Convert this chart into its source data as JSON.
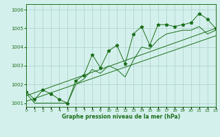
{
  "x": [
    0,
    1,
    2,
    3,
    4,
    5,
    6,
    7,
    8,
    9,
    10,
    11,
    12,
    13,
    14,
    15,
    16,
    17,
    18,
    19,
    20,
    21,
    22,
    23
  ],
  "y_main": [
    1001.6,
    1001.2,
    1001.7,
    1001.5,
    1001.2,
    1001.0,
    1002.2,
    1002.5,
    1003.6,
    1002.9,
    1003.8,
    1004.1,
    1003.1,
    1004.7,
    1005.1,
    1004.1,
    1005.2,
    1005.2,
    1005.1,
    1005.2,
    1005.3,
    1005.8,
    1005.5,
    1005.0
  ],
  "y_low": [
    1001.5,
    1001.0,
    1001.0,
    1001.0,
    1001.0,
    1001.0,
    1002.0,
    1002.3,
    1002.8,
    1002.6,
    1003.0,
    1002.8,
    1002.4,
    1003.3,
    1004.0,
    1003.9,
    1004.4,
    1004.7,
    1004.8,
    1004.9,
    1004.9,
    1005.1,
    1004.7,
    1004.9
  ],
  "trend1_x": [
    0,
    23
  ],
  "trend1_y": [
    1001.4,
    1005.0
  ],
  "trend2_x": [
    0,
    23
  ],
  "trend2_y": [
    1001.1,
    1004.6
  ],
  "xlim": [
    0,
    23
  ],
  "ylim": [
    1000.8,
    1006.3
  ],
  "yticks": [
    1001,
    1002,
    1003,
    1004,
    1005,
    1006
  ],
  "xticks": [
    0,
    1,
    2,
    3,
    4,
    5,
    6,
    7,
    8,
    9,
    10,
    11,
    12,
    13,
    14,
    15,
    16,
    17,
    18,
    19,
    20,
    21,
    22,
    23
  ],
  "xlabel": "Graphe pression niveau de la mer (hPa)",
  "line_color": "#1a6e1a",
  "bg_color": "#d4f0ec",
  "grid_color": "#aacfca",
  "marker": "*",
  "marker_size": 3.5,
  "tick_fontsize": 5,
  "xlabel_fontsize": 5.5
}
